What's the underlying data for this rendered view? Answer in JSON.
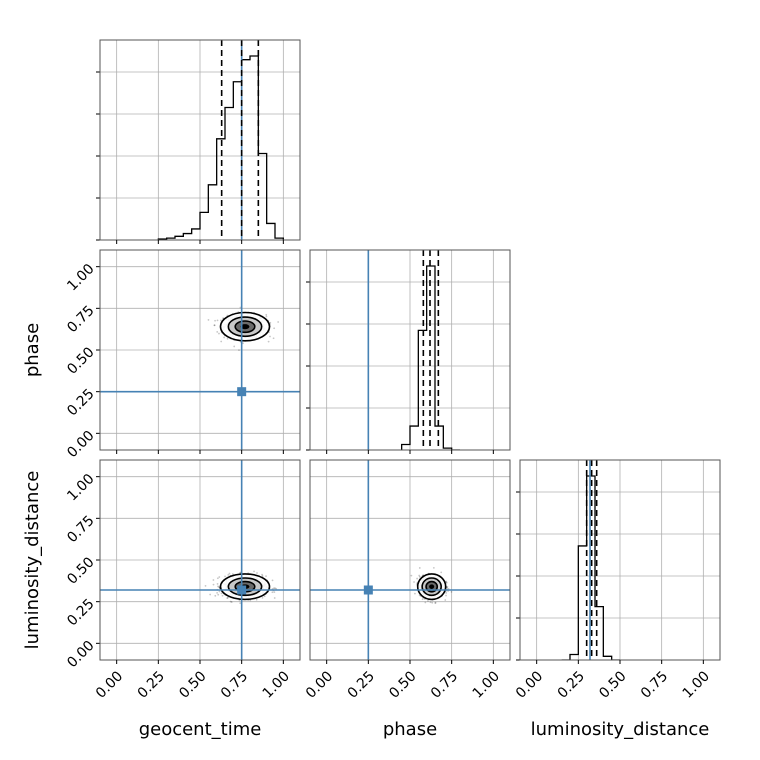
{
  "chart_data": {
    "type": "corner",
    "parameters": [
      "geocent_time",
      "phase",
      "luminosity_distance"
    ],
    "truths": {
      "geocent_time": 0.75,
      "phase": 0.25,
      "luminosity_distance": 0.32
    },
    "range": [
      -0.1,
      1.1
    ],
    "ticks": [
      "0.00",
      "0.25",
      "0.50",
      "0.75",
      "1.00"
    ],
    "grid": true,
    "histograms": [
      {
        "parameter": "geocent_time",
        "bin_edges": [
          0.25,
          0.3,
          0.35,
          0.4,
          0.45,
          0.5,
          0.55,
          0.6,
          0.65,
          0.7,
          0.75,
          0.8,
          0.85,
          0.9,
          0.95,
          1.0
        ],
        "counts": [
          0.005,
          0.01,
          0.02,
          0.035,
          0.06,
          0.15,
          0.3,
          0.55,
          0.72,
          0.86,
          0.98,
          1.0,
          0.47,
          0.09,
          0.01
        ],
        "quantile_lines": [
          0.63,
          0.75,
          0.85
        ]
      },
      {
        "parameter": "phase",
        "bin_edges": [
          0.45,
          0.5,
          0.55,
          0.6,
          0.65,
          0.7,
          0.75,
          0.8
        ],
        "counts": [
          0.03,
          0.13,
          0.65,
          1.0,
          0.13,
          0.01,
          0.0
        ],
        "quantile_lines": [
          0.58,
          0.62,
          0.67
        ]
      },
      {
        "parameter": "luminosity_distance",
        "bin_edges": [
          0.15,
          0.2,
          0.25,
          0.3,
          0.35,
          0.4,
          0.45,
          0.5
        ],
        "counts": [
          0.0,
          0.03,
          0.62,
          1.0,
          0.29,
          0.02,
          0.0
        ],
        "quantile_lines": [
          0.3,
          0.33,
          0.36
        ]
      }
    ],
    "joint_contours": [
      {
        "x_param": "geocent_time",
        "y_param": "phase",
        "center": [
          0.77,
          0.64
        ],
        "spread": [
          0.14,
          0.1
        ]
      },
      {
        "x_param": "geocent_time",
        "y_param": "luminosity_distance",
        "center": [
          0.77,
          0.34
        ],
        "spread": [
          0.14,
          0.09
        ]
      },
      {
        "x_param": "phase",
        "y_param": "luminosity_distance",
        "center": [
          0.63,
          0.34
        ],
        "spread": [
          0.08,
          0.09
        ]
      }
    ]
  }
}
